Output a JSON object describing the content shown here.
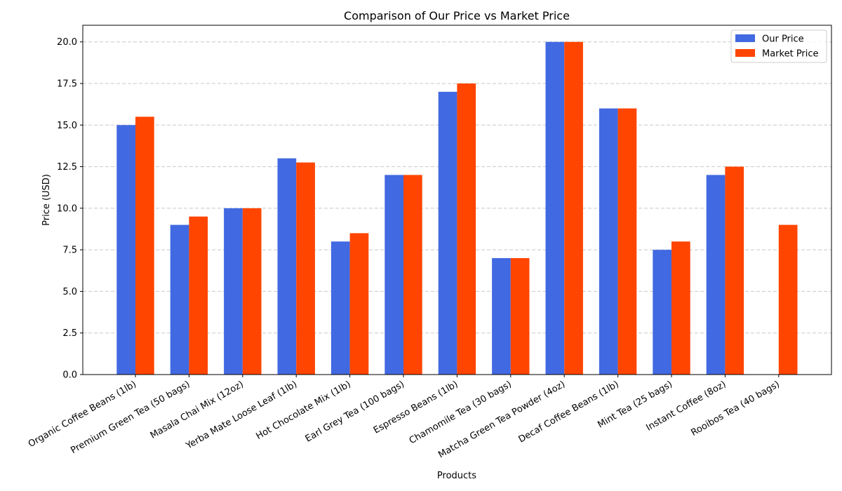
{
  "chart_data": {
    "type": "bar",
    "title": "Comparison of Our Price vs Market Price",
    "xlabel": "Products",
    "ylabel": "Price (USD)",
    "ylim": [
      0,
      21
    ],
    "yticks": [
      "0.0",
      "2.5",
      "5.0",
      "7.5",
      "10.0",
      "12.5",
      "15.0",
      "17.5",
      "20.0"
    ],
    "grid": "y-dashed",
    "legend_position": "top-right",
    "categories": [
      "Organic Coffee Beans (1lb)",
      "Premium Green Tea (50 bags)",
      "Masala Chai Mix (12oz)",
      "Yerba Mate Loose Leaf (1lb)",
      "Hot Chocolate Mix (1lb)",
      "Earl Grey Tea (100 bags)",
      "Espresso Beans (1lb)",
      "Chamomile Tea (30 bags)",
      "Matcha Green Tea Powder (4oz)",
      "Decaf Coffee Beans (1lb)",
      "Mint Tea (25 bags)",
      "Instant Coffee (8oz)",
      "Rooibos Tea (40 bags)"
    ],
    "series": [
      {
        "name": "Our Price",
        "color": "#4169e1",
        "values": [
          15.0,
          9.0,
          10.0,
          13.0,
          8.0,
          12.0,
          17.0,
          7.0,
          20.0,
          16.0,
          7.5,
          12.0,
          null
        ]
      },
      {
        "name": "Market Price",
        "color": "#ff4500",
        "values": [
          15.5,
          9.5,
          10.0,
          12.75,
          8.5,
          12.0,
          17.5,
          7.0,
          20.0,
          16.0,
          8.0,
          12.5,
          9.0
        ]
      }
    ]
  }
}
